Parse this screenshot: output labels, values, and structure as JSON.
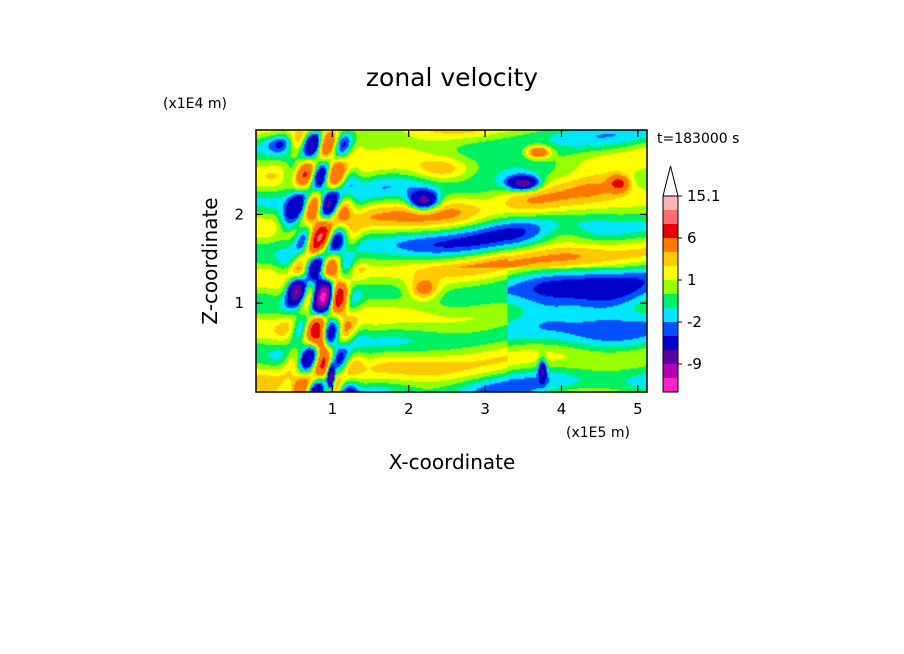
{
  "chart_data": {
    "type": "heatmap",
    "title": "zonal velocity",
    "xlabel": "X-coordinate",
    "ylabel": "Z-coordinate",
    "x_unit": "(x1E5 m)",
    "y_unit": "(x1E4 m)",
    "time_label": "t=183000 s",
    "xlim": [
      0.0,
      5.12
    ],
    "ylim": [
      0.0,
      2.95
    ],
    "x_ticks": [
      "1",
      "2",
      "3",
      "4",
      "5"
    ],
    "y_ticks": [
      "1",
      "2"
    ],
    "grid": false,
    "colorbar": {
      "levels": [
        -15,
        -12,
        -9,
        -6,
        -3,
        -2,
        -1,
        0,
        1,
        2,
        3,
        6,
        9,
        12,
        15.1
      ],
      "colors": [
        "#ff20c8",
        "#b400b4",
        "#5a00a0",
        "#0000c8",
        "#0050ff",
        "#00e6ff",
        "#00f064",
        "#96ff00",
        "#ffff00",
        "#ffc800",
        "#ff7800",
        "#e60000",
        "#ff6e6e",
        "#ffb4b4",
        "#ffffff"
      ],
      "labels": [
        "15.1",
        "6",
        "1",
        "-2",
        "-9"
      ],
      "extend_top": true
    },
    "field_features": [
      {
        "x": 2.2,
        "z": 2.15,
        "sx": 0.18,
        "sz": 0.1,
        "value": -8
      },
      {
        "x": 3.5,
        "z": 2.35,
        "sx": 0.2,
        "sz": 0.08,
        "value": -8
      },
      {
        "x": 2.45,
        "z": 2.5,
        "sx": 0.4,
        "sz": 0.15,
        "value": 3
      },
      {
        "x": 3.1,
        "z": 2.1,
        "sx": 0.4,
        "sz": 0.2,
        "value": -2
      },
      {
        "x": 4.5,
        "z": 2.3,
        "sx": 0.5,
        "sz": 0.15,
        "value": 2.5
      },
      {
        "x": 4.75,
        "z": 2.35,
        "sx": 0.12,
        "sz": 0.08,
        "value": 6
      },
      {
        "x": 3.7,
        "z": 2.7,
        "sx": 0.15,
        "sz": 0.07,
        "value": 6
      },
      {
        "x": 4.0,
        "z": 1.8,
        "sx": 0.4,
        "sz": 0.15,
        "value": 2.5
      },
      {
        "x": 2.2,
        "z": 1.15,
        "sx": 0.2,
        "sz": 0.12,
        "value": 4
      },
      {
        "x": 4.6,
        "z": 1.0,
        "sx": 0.6,
        "sz": 0.4,
        "value": -2.5
      },
      {
        "x": 3.8,
        "z": 1.05,
        "sx": 0.4,
        "sz": 0.3,
        "value": -1.5
      },
      {
        "x": 0.55,
        "z": 1.15,
        "sx": 0.12,
        "sz": 0.15,
        "value": -9
      },
      {
        "x": 0.9,
        "z": 1.15,
        "sx": 0.15,
        "sz": 0.22,
        "value": -8
      },
      {
        "x": 1.07,
        "z": 1.1,
        "sx": 0.12,
        "sz": 0.18,
        "value": 7
      },
      {
        "x": 0.75,
        "z": 1.65,
        "sx": 0.12,
        "sz": 0.2,
        "value": 5
      },
      {
        "x": 0.45,
        "z": 1.9,
        "sx": 0.15,
        "sz": 0.25,
        "value": -4
      },
      {
        "x": 0.98,
        "z": 0.15,
        "sx": 0.05,
        "sz": 0.15,
        "value": -10
      },
      {
        "x": 0.85,
        "z": 0.55,
        "sx": 0.08,
        "sz": 0.12,
        "value": 5
      },
      {
        "x": 3.75,
        "z": 0.25,
        "sx": 0.05,
        "sz": 0.12,
        "value": -6
      },
      {
        "x": 0.3,
        "z": 2.8,
        "sx": 0.2,
        "sz": 0.1,
        "value": -2.5
      }
    ]
  }
}
